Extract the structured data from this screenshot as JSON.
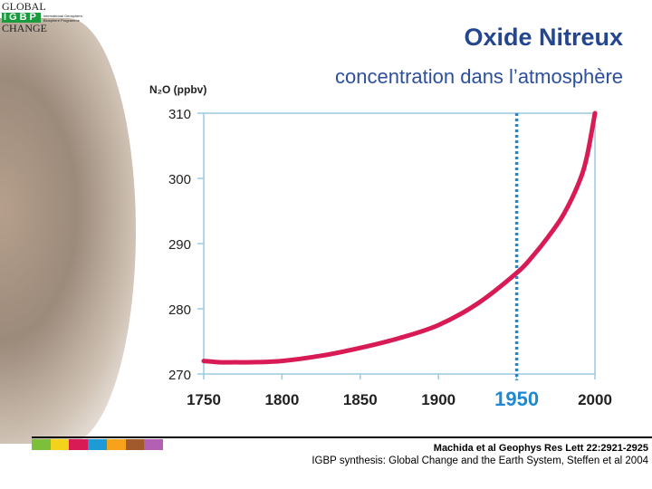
{
  "logo": {
    "line1": "GLOBAL",
    "box": "IGBP",
    "sub": "International Geosphere-Biosphere Programme",
    "line3": "CHANGE"
  },
  "header": {
    "title": "Oxide Nitreux",
    "subtitle": "concentration dans l’atmosphère"
  },
  "chart_data": {
    "type": "line",
    "title": "Oxide Nitreux",
    "ylabel": "N₂O (ppbv)",
    "xlabel": "",
    "xlim": [
      1750,
      2000
    ],
    "ylim": [
      270,
      310
    ],
    "xticks": [
      "1750",
      "1800",
      "1850",
      "1900",
      "1950",
      "2000"
    ],
    "yticks": [
      "270",
      "280",
      "290",
      "300",
      "310"
    ],
    "highlight_year": "1950",
    "series": [
      {
        "name": "N2O",
        "color": "#d81b54",
        "x": [
          1750,
          1760,
          1770,
          1780,
          1800,
          1825,
          1850,
          1875,
          1900,
          1925,
          1950,
          1960,
          1970,
          1980,
          1990,
          1995,
          2000
        ],
        "y": [
          272,
          271.8,
          271.8,
          271.8,
          272,
          272.8,
          274,
          275.5,
          277.5,
          280.8,
          285.5,
          288,
          291,
          294.5,
          299.5,
          303.5,
          310
        ]
      }
    ],
    "grid": false
  },
  "footer": {
    "ref1": "Machida et al Geophys Res Lett 22:2921-2925",
    "ref2": "IGBP synthesis: Global Change and the Earth System, Steffen et al 2004",
    "strip_colors": [
      "#7cbf3a",
      "#f2d21b",
      "#d81b54",
      "#1e9ad6",
      "#f7a21b",
      "#a05a2c",
      "#b35fb3"
    ]
  }
}
